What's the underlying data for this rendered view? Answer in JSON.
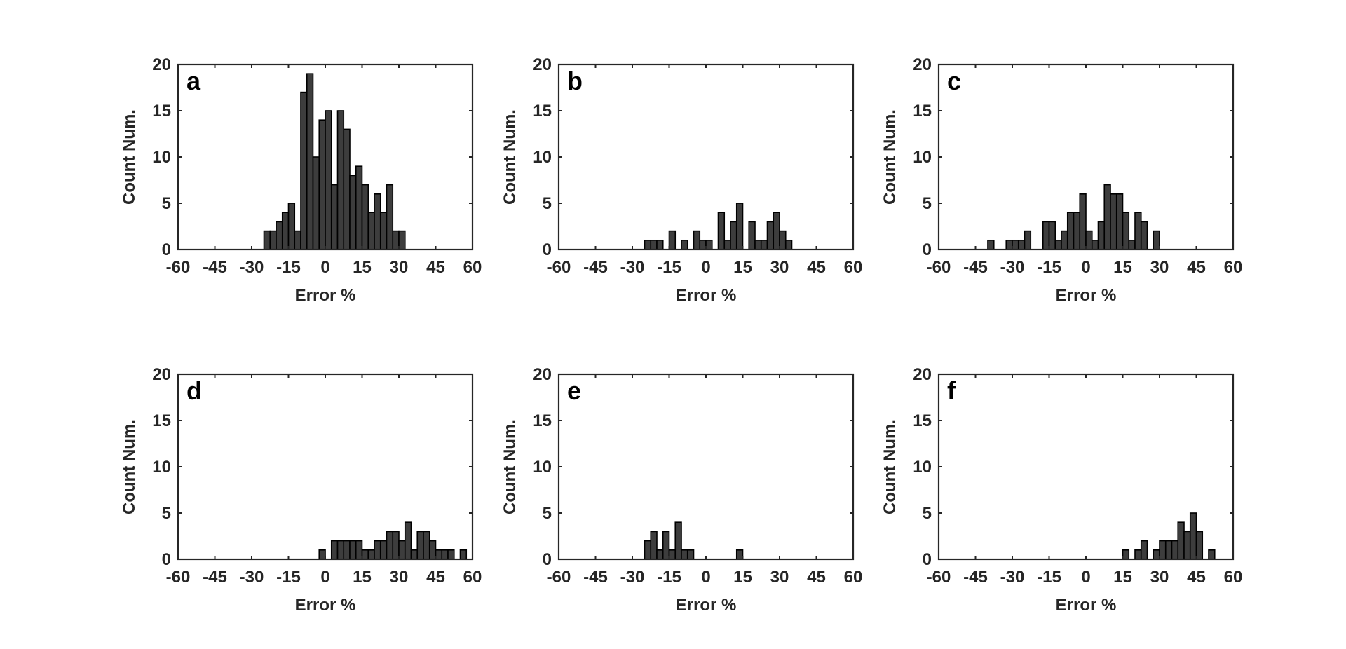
{
  "style": {
    "bar_fill": "#3d3d3d",
    "bar_edge": "#000000",
    "axis_color": "#262626"
  },
  "chart_data": [
    {
      "type": "bar",
      "panel": "a",
      "xlabel": "Error %",
      "ylabel": "Count Num.",
      "xlim": [
        -60,
        60
      ],
      "ylim": [
        0,
        20
      ],
      "bin_width": 2.5,
      "xticks": [
        "-60",
        "-45",
        "-30",
        "-15",
        "0",
        "15",
        "30",
        "45",
        "60"
      ],
      "yticks": [
        "0",
        "5",
        "10",
        "15",
        "20"
      ],
      "bin_starts": [
        -25,
        -22.5,
        -20,
        -17.5,
        -15,
        -12.5,
        -10,
        -7.5,
        -5,
        -2.5,
        0,
        2.5,
        5,
        7.5,
        10,
        12.5,
        15,
        17.5,
        20,
        22.5,
        25,
        27.5,
        30
      ],
      "values": [
        2,
        2,
        3,
        4,
        5,
        2,
        17,
        19,
        10,
        14,
        15,
        7,
        15,
        13,
        8,
        9,
        7,
        4,
        6,
        4,
        7,
        2,
        2
      ]
    },
    {
      "type": "bar",
      "panel": "b",
      "xlabel": "Error %",
      "ylabel": "Count Num.",
      "xlim": [
        -60,
        60
      ],
      "ylim": [
        0,
        20
      ],
      "bin_width": 2.5,
      "xticks": [
        "-60",
        "-45",
        "-30",
        "-15",
        "0",
        "15",
        "30",
        "45",
        "60"
      ],
      "yticks": [
        "0",
        "5",
        "10",
        "15",
        "20"
      ],
      "bin_starts": [
        -25,
        -22.5,
        -20,
        -17.5,
        -15,
        -12.5,
        -10,
        -7.5,
        -5,
        -2.5,
        0,
        2.5,
        5,
        7.5,
        10,
        12.5,
        15,
        17.5,
        20,
        22.5,
        25,
        27.5,
        30,
        32.5
      ],
      "values": [
        1,
        1,
        1,
        0,
        2,
        0,
        1,
        0,
        2,
        1,
        1,
        0,
        4,
        1,
        3,
        5,
        0,
        3,
        1,
        1,
        3,
        4,
        2,
        1
      ]
    },
    {
      "type": "bar",
      "panel": "c",
      "xlabel": "Error %",
      "ylabel": "Count Num.",
      "xlim": [
        -60,
        60
      ],
      "ylim": [
        0,
        20
      ],
      "bin_width": 2.5,
      "xticks": [
        "-60",
        "-45",
        "-30",
        "-15",
        "0",
        "15",
        "30",
        "45",
        "60"
      ],
      "yticks": [
        "0",
        "5",
        "10",
        "15",
        "20"
      ],
      "bin_starts": [
        -40,
        -37.5,
        -35,
        -32.5,
        -30,
        -27.5,
        -25,
        -22.5,
        -20,
        -17.5,
        -15,
        -12.5,
        -10,
        -7.5,
        -5,
        -2.5,
        0,
        2.5,
        5,
        7.5,
        10,
        12.5,
        15,
        17.5,
        20,
        22.5,
        25,
        27.5
      ],
      "values": [
        1,
        0,
        0,
        1,
        1,
        1,
        2,
        0,
        0,
        3,
        3,
        1,
        2,
        4,
        4,
        6,
        2,
        1,
        3,
        7,
        6,
        6,
        4,
        1,
        4,
        3,
        0,
        2
      ]
    },
    {
      "type": "bar",
      "panel": "d",
      "xlabel": "Error %",
      "ylabel": "Count Num.",
      "xlim": [
        -60,
        60
      ],
      "ylim": [
        0,
        20
      ],
      "bin_width": 2.5,
      "xticks": [
        "-60",
        "-45",
        "-30",
        "-15",
        "0",
        "15",
        "30",
        "45",
        "60"
      ],
      "yticks": [
        "0",
        "5",
        "10",
        "15",
        "20"
      ],
      "bin_starts": [
        -2.5,
        0,
        2.5,
        5,
        7.5,
        10,
        12.5,
        15,
        17.5,
        20,
        22.5,
        25,
        27.5,
        30,
        32.5,
        35,
        37.5,
        40,
        42.5,
        45,
        47.5,
        50,
        52.5,
        55
      ],
      "values": [
        1,
        0,
        2,
        2,
        2,
        2,
        2,
        1,
        1,
        2,
        2,
        3,
        3,
        2,
        4,
        1,
        3,
        3,
        2,
        1,
        1,
        1,
        0,
        1
      ]
    },
    {
      "type": "bar",
      "panel": "e",
      "xlabel": "Error %",
      "ylabel": "Count Num.",
      "xlim": [
        -60,
        60
      ],
      "ylim": [
        0,
        20
      ],
      "bin_width": 2.5,
      "xticks": [
        "-60",
        "-45",
        "-30",
        "-15",
        "0",
        "15",
        "30",
        "45",
        "60"
      ],
      "yticks": [
        "0",
        "5",
        "10",
        "15",
        "20"
      ],
      "bin_starts": [
        -25,
        -22.5,
        -20,
        -17.5,
        -15,
        -12.5,
        -10,
        -7.5,
        -5,
        -2.5,
        0,
        2.5,
        5,
        7.5,
        10,
        12.5
      ],
      "values": [
        2,
        3,
        1,
        3,
        1,
        4,
        1,
        1,
        0,
        0,
        0,
        0,
        0,
        0,
        0,
        1
      ]
    },
    {
      "type": "bar",
      "panel": "f",
      "xlabel": "Error %",
      "ylabel": "Count Num.",
      "xlim": [
        -60,
        60
      ],
      "ylim": [
        0,
        20
      ],
      "bin_width": 2.5,
      "xticks": [
        "-60",
        "-45",
        "-30",
        "-15",
        "0",
        "15",
        "30",
        "45",
        "60"
      ],
      "yticks": [
        "0",
        "5",
        "10",
        "15",
        "20"
      ],
      "bin_starts": [
        15,
        17.5,
        20,
        22.5,
        25,
        27.5,
        30,
        32.5,
        35,
        37.5,
        40,
        42.5,
        45,
        47.5,
        50
      ],
      "values": [
        1,
        0,
        1,
        2,
        0,
        1,
        2,
        2,
        2,
        4,
        3,
        5,
        3,
        0,
        1
      ]
    }
  ]
}
